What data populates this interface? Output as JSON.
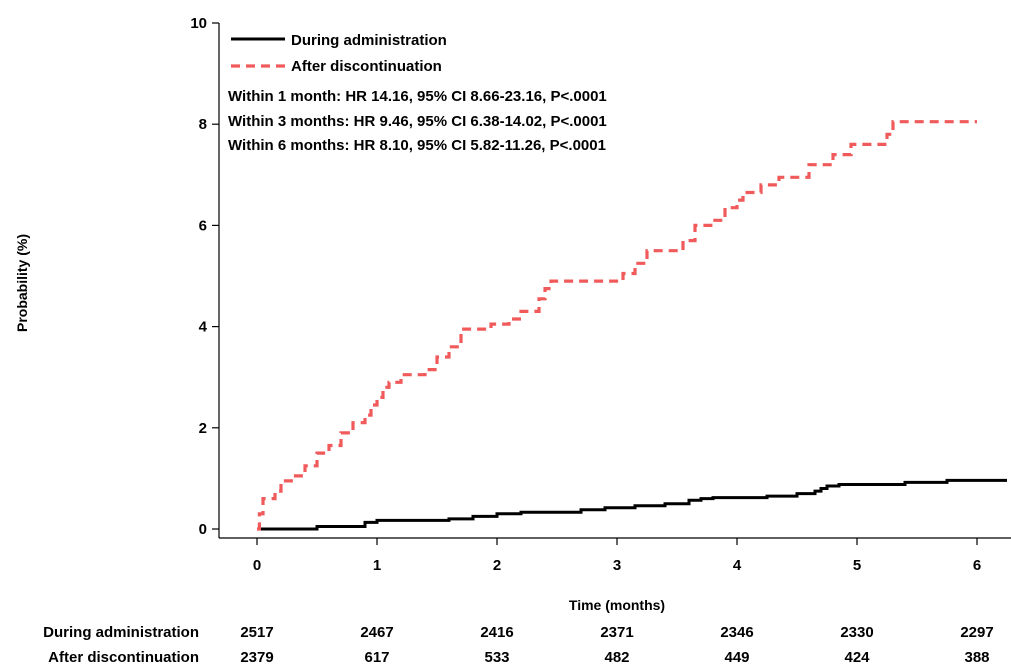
{
  "chart_data": {
    "type": "line",
    "title": "",
    "xlabel": "Time (months)",
    "ylabel": "Probability (%)",
    "xlim": [
      -0.3,
      6.3
    ],
    "ylim": [
      -0.2,
      10
    ],
    "xticks": [
      0,
      1,
      2,
      3,
      4,
      5,
      6
    ],
    "yticks": [
      0,
      2,
      4,
      6,
      8,
      10
    ],
    "grid": false,
    "legend_position": "top-left",
    "series": [
      {
        "name": "During administration",
        "color": "#000000",
        "style": "solid",
        "steps": [
          [
            0,
            0
          ],
          [
            0.5,
            0.05
          ],
          [
            0.9,
            0.13
          ],
          [
            1.0,
            0.17
          ],
          [
            1.6,
            0.2
          ],
          [
            1.8,
            0.25
          ],
          [
            2.0,
            0.3
          ],
          [
            2.2,
            0.33
          ],
          [
            2.7,
            0.38
          ],
          [
            2.9,
            0.42
          ],
          [
            3.15,
            0.46
          ],
          [
            3.4,
            0.5
          ],
          [
            3.6,
            0.57
          ],
          [
            3.7,
            0.6
          ],
          [
            3.8,
            0.62
          ],
          [
            4.25,
            0.65
          ],
          [
            4.5,
            0.7
          ],
          [
            4.65,
            0.75
          ],
          [
            4.7,
            0.8
          ],
          [
            4.75,
            0.85
          ],
          [
            4.85,
            0.88
          ],
          [
            5.4,
            0.92
          ],
          [
            5.75,
            0.96
          ],
          [
            6.25,
            0.96
          ]
        ]
      },
      {
        "name": "After discontinuation",
        "color": "#f05a5a",
        "style": "dashed",
        "steps": [
          [
            0,
            0
          ],
          [
            0.02,
            0.3
          ],
          [
            0.05,
            0.6
          ],
          [
            0.15,
            0.75
          ],
          [
            0.2,
            0.95
          ],
          [
            0.3,
            1.05
          ],
          [
            0.4,
            1.25
          ],
          [
            0.5,
            1.5
          ],
          [
            0.6,
            1.65
          ],
          [
            0.7,
            1.9
          ],
          [
            0.8,
            2.1
          ],
          [
            0.9,
            2.25
          ],
          [
            0.95,
            2.45
          ],
          [
            1.0,
            2.6
          ],
          [
            1.05,
            2.8
          ],
          [
            1.1,
            2.9
          ],
          [
            1.2,
            3.05
          ],
          [
            1.4,
            3.15
          ],
          [
            1.5,
            3.4
          ],
          [
            1.6,
            3.6
          ],
          [
            1.7,
            3.95
          ],
          [
            1.95,
            4.05
          ],
          [
            2.1,
            4.15
          ],
          [
            2.2,
            4.3
          ],
          [
            2.35,
            4.55
          ],
          [
            2.4,
            4.75
          ],
          [
            2.45,
            4.9
          ],
          [
            3.05,
            5.05
          ],
          [
            3.15,
            5.25
          ],
          [
            3.25,
            5.5
          ],
          [
            3.55,
            5.7
          ],
          [
            3.65,
            6.0
          ],
          [
            3.8,
            6.1
          ],
          [
            3.9,
            6.35
          ],
          [
            4.0,
            6.5
          ],
          [
            4.05,
            6.65
          ],
          [
            4.2,
            6.8
          ],
          [
            4.35,
            6.95
          ],
          [
            4.6,
            7.2
          ],
          [
            4.8,
            7.4
          ],
          [
            4.95,
            7.6
          ],
          [
            5.25,
            7.8
          ],
          [
            5.3,
            8.05
          ],
          [
            6.0,
            8.05
          ]
        ]
      }
    ],
    "annotations": [
      "Within 1 month: HR 14.16, 95% CI 8.66-23.16, P<.0001",
      "Within 3 months: HR 9.46, 95% CI 6.38-14.02, P<.0001",
      "Within 6 months: HR 8.10, 95% CI 5.82-11.26, P<.0001"
    ],
    "risk_table": {
      "time_points": [
        0,
        1,
        2,
        3,
        4,
        5,
        6
      ],
      "rows": [
        {
          "label": "During administration",
          "values": [
            "2517",
            "2467",
            "2416",
            "2371",
            "2346",
            "2330",
            "2297"
          ]
        },
        {
          "label": "After discontinuation",
          "values": [
            "2379",
            "617",
            "533",
            "482",
            "449",
            "424",
            "388"
          ]
        }
      ]
    }
  }
}
